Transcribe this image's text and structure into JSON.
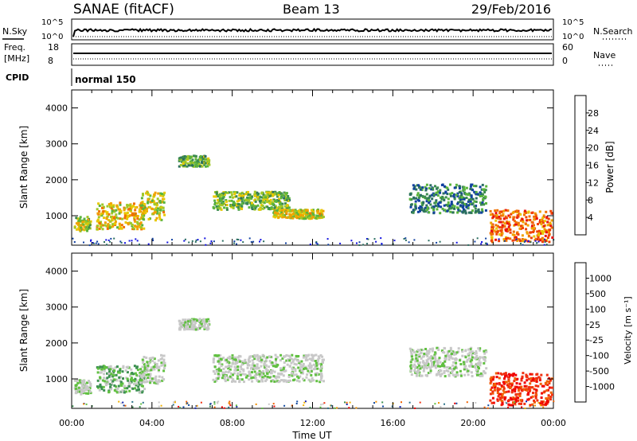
{
  "header": {
    "station": "SANAE (fitACF)",
    "beam": "Beam 13",
    "date": "29/Feb/2016"
  },
  "noise_panel": {
    "left_label": "N.Sky",
    "right_label": "N.Search",
    "left_top": "10^5",
    "left_bottom": "10^0",
    "right_top": "10^5",
    "right_bottom": "10^0"
  },
  "freq_panel": {
    "left_label_1": "Freq.",
    "left_label_2": "[MHz]",
    "right_label": "Nave",
    "left_top": "18",
    "left_bottom": "8",
    "right_top": "60",
    "right_bottom": "0"
  },
  "cpid_panel": {
    "label": "CPID",
    "mode_text": "normal 150"
  },
  "xaxis": {
    "label": "Time UT",
    "ticks": [
      "00:00",
      "04:00",
      "08:00",
      "12:00",
      "16:00",
      "20:00",
      "00:00"
    ]
  },
  "power_colorbar": {
    "label": "Power [dB]",
    "ticks": [
      "4",
      "8",
      "12",
      "16",
      "20",
      "24",
      "28"
    ],
    "colors": [
      "#1010e0",
      "#1040a0",
      "#2a6e60",
      "#3c8c50",
      "#5ab43c",
      "#a0c828",
      "#e8c800",
      "#f0a000",
      "#f07000",
      "#f04000",
      "#e81010"
    ]
  },
  "velocity_colorbar": {
    "label": "Velocity [m s⁻¹]",
    "ticks": [
      "1000",
      "500",
      "100",
      "25",
      "-25",
      "-100",
      "-500",
      "-1000"
    ],
    "colors": [
      "#1020b0",
      "#1048a0",
      "#2a7088",
      "#3c9050",
      "#60c040",
      "#c8c8c8",
      "#c8c8c8",
      "#f0b000",
      "#f09000",
      "#f06000",
      "#f03010",
      "#f00000"
    ]
  },
  "chart_data": [
    {
      "type": "heatmap",
      "title": "Power",
      "xlabel": "Time UT",
      "ylabel": "Slant Range [km]",
      "xlim_hours": [
        0,
        24
      ],
      "ylim_km": [
        180,
        4500
      ],
      "yticks": [
        1000,
        2000,
        3000,
        4000
      ],
      "value_label": "Power [dB]",
      "value_ticks": [
        4,
        8,
        12,
        16,
        20,
        24,
        28
      ],
      "features": [
        {
          "t_start": 0.1,
          "t_end": 0.9,
          "range_km": [
            600,
            1000
          ],
          "value_db": 16
        },
        {
          "t_start": 1.2,
          "t_end": 3.6,
          "range_km": [
            650,
            1400
          ],
          "value_db": 20
        },
        {
          "t_start": 3.4,
          "t_end": 4.6,
          "range_km": [
            900,
            1700
          ],
          "value_db": 18
        },
        {
          "t_start": 5.3,
          "t_end": 6.8,
          "range_km": [
            2400,
            2700
          ],
          "value_db": 12
        },
        {
          "t_start": 7.0,
          "t_end": 10.8,
          "range_km": [
            1200,
            1700
          ],
          "value_db": 14
        },
        {
          "t_start": 10.0,
          "t_end": 12.5,
          "range_km": [
            950,
            1200
          ],
          "value_db": 18
        },
        {
          "t_start": 16.8,
          "t_end": 20.6,
          "range_km": [
            1100,
            1900
          ],
          "value_db": 8
        },
        {
          "t_start": 20.8,
          "t_end": 23.9,
          "range_km": [
            300,
            1200
          ],
          "value_db": 26
        }
      ]
    },
    {
      "type": "heatmap",
      "title": "Velocity",
      "xlabel": "Time UT",
      "ylabel": "Slant Range [km]",
      "xlim_hours": [
        0,
        24
      ],
      "ylim_km": [
        180,
        4500
      ],
      "yticks": [
        1000,
        2000,
        3000,
        4000
      ],
      "value_label": "Velocity [m s⁻¹]",
      "value_ticks": [
        1000,
        500,
        100,
        25,
        -25,
        -100,
        -500,
        -1000
      ],
      "features": [
        {
          "t_start": 0.1,
          "t_end": 0.9,
          "range_km": [
            600,
            1000
          ],
          "value_ms": 50
        },
        {
          "t_start": 1.2,
          "t_end": 3.6,
          "range_km": [
            650,
            1400
          ],
          "value_ms": 80
        },
        {
          "t_start": 3.4,
          "t_end": 4.6,
          "range_km": [
            900,
            1700
          ],
          "value_ms": 60
        },
        {
          "t_start": 5.3,
          "t_end": 6.8,
          "range_km": [
            2400,
            2700
          ],
          "value_ms": 0
        },
        {
          "t_start": 7.0,
          "t_end": 12.5,
          "range_km": [
            950,
            1700
          ],
          "value_ms": 0
        },
        {
          "t_start": 16.8,
          "t_end": 20.6,
          "range_km": [
            1100,
            1900
          ],
          "value_ms": 0
        },
        {
          "t_start": 20.8,
          "t_end": 23.9,
          "range_km": [
            300,
            1200
          ],
          "value_ms": -400
        }
      ]
    }
  ]
}
